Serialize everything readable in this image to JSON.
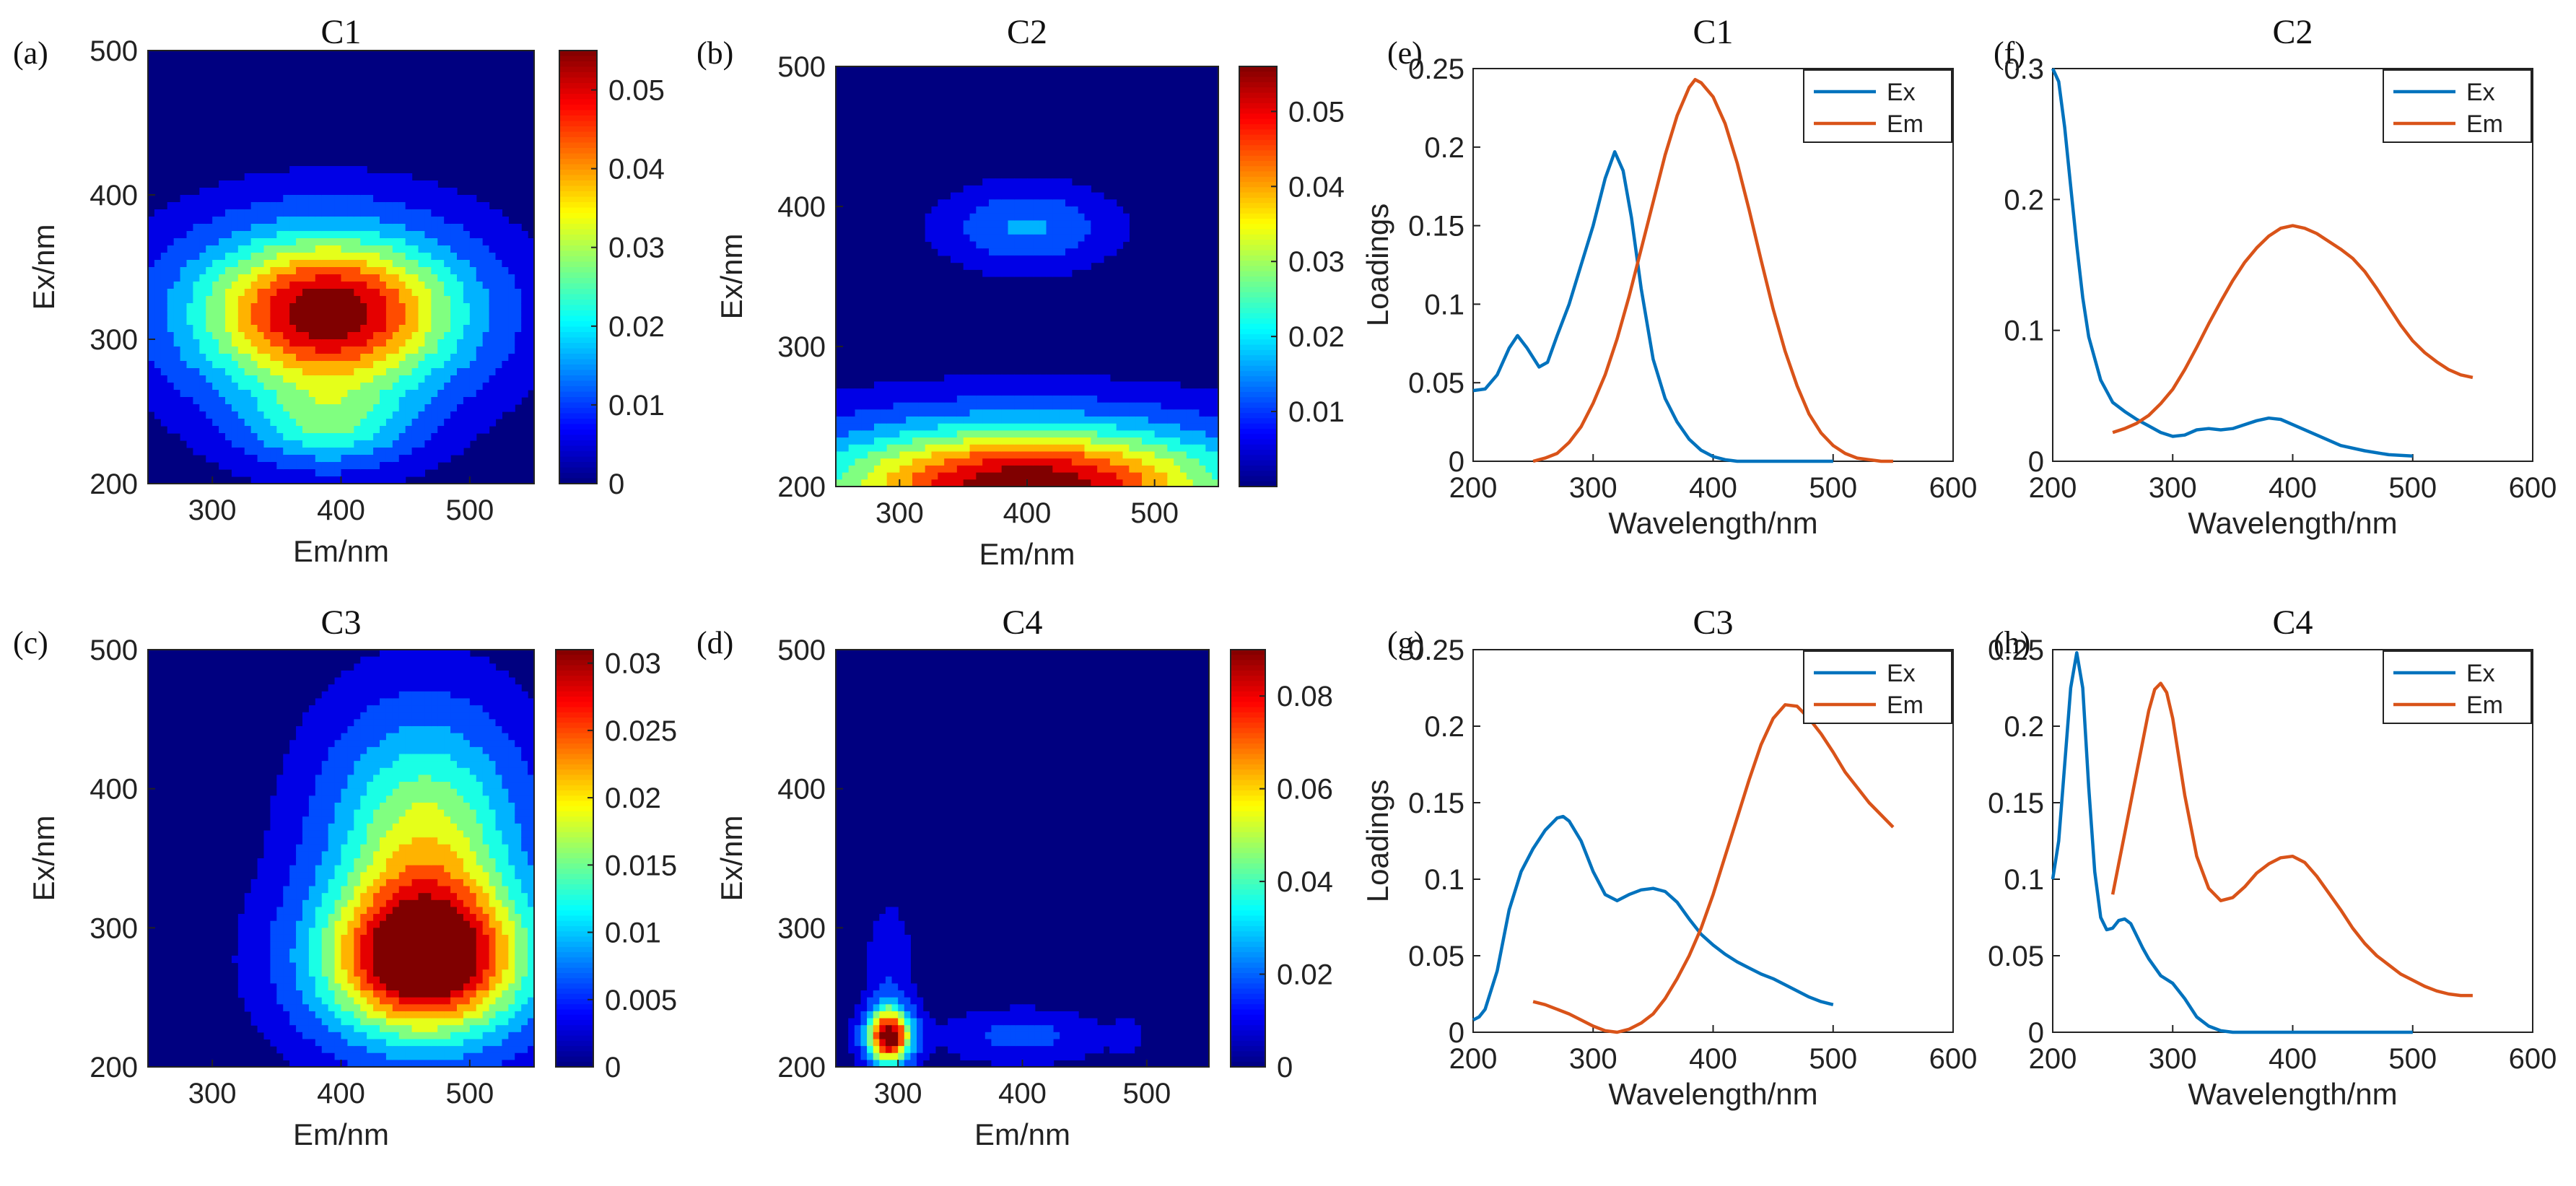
{
  "colors": {
    "ex": "#0072BD",
    "em": "#D95319",
    "jet_low": "#00008F",
    "jet_high": "#800000"
  },
  "chart_data": [
    {
      "id": "a",
      "panel": "(a)",
      "type": "heatmap",
      "title": "C1",
      "xlabel": "Em/nm",
      "ylabel": "Ex/nm",
      "xlim": [
        250,
        550
      ],
      "ylim": [
        200,
        500
      ],
      "xticks": [
        300,
        400,
        500
      ],
      "yticks": [
        200,
        300,
        400,
        500
      ],
      "colorbar": {
        "range": [
          0,
          0.055
        ],
        "ticks": [
          0,
          0.01,
          0.02,
          0.03,
          0.04,
          0.05
        ],
        "labels": [
          "0",
          "0.01",
          "0.02",
          "0.03",
          "0.04",
          "0.05"
        ]
      },
      "peaks": [
        {
          "em": 390,
          "ex": 318,
          "value": 0.055,
          "em_width": 70,
          "ex_width": 38
        },
        {
          "em": 390,
          "ex": 240,
          "value": 0.018,
          "em_width": 45,
          "ex_width": 20
        }
      ]
    },
    {
      "id": "b",
      "panel": "(b)",
      "type": "heatmap",
      "title": "C2",
      "xlabel": "Em/nm",
      "ylabel": "Ex/nm",
      "xlim": [
        250,
        550
      ],
      "ylim": [
        200,
        500
      ],
      "xticks": [
        300,
        400,
        500
      ],
      "yticks": [
        200,
        300,
        400,
        500
      ],
      "colorbar": {
        "range": [
          0,
          0.056
        ],
        "ticks": [
          0.01,
          0.02,
          0.03,
          0.04,
          0.05
        ],
        "labels": [
          "0.01",
          "0.02",
          "0.03",
          "0.04",
          "0.05"
        ]
      },
      "peaks": [
        {
          "em": 400,
          "ex": 200,
          "value": 0.056,
          "em_width": 110,
          "ex_width": 30
        },
        {
          "em": 400,
          "ex": 385,
          "value": 0.012,
          "em_width": 40,
          "ex_width": 18
        }
      ]
    },
    {
      "id": "c",
      "panel": "(c)",
      "type": "heatmap",
      "title": "C3",
      "xlabel": "Em/nm",
      "ylabel": "Ex/nm",
      "xlim": [
        250,
        550
      ],
      "ylim": [
        200,
        500
      ],
      "xticks": [
        300,
        400,
        500
      ],
      "yticks": [
        200,
        300,
        400,
        500
      ],
      "colorbar": {
        "range": [
          0,
          0.031
        ],
        "ticks": [
          0,
          0.005,
          0.01,
          0.015,
          0.02,
          0.025,
          0.03
        ],
        "labels": [
          "0",
          "0.005",
          "0.01",
          "0.015",
          "0.02",
          "0.025",
          "0.03"
        ]
      },
      "peaks": [
        {
          "em": 465,
          "ex": 275,
          "value": 0.031,
          "em_width": 55,
          "ex_width": 38
        },
        {
          "em": 465,
          "ex": 360,
          "value": 0.017,
          "em_width": 50,
          "ex_width": 60
        }
      ]
    },
    {
      "id": "d",
      "panel": "(d)",
      "type": "heatmap",
      "title": "C4",
      "xlabel": "Em/nm",
      "ylabel": "Ex/nm",
      "xlim": [
        250,
        550
      ],
      "ylim": [
        200,
        500
      ],
      "xticks": [
        300,
        400,
        500
      ],
      "yticks": [
        200,
        300,
        400,
        500
      ],
      "colorbar": {
        "range": [
          0,
          0.09
        ],
        "ticks": [
          0,
          0.02,
          0.04,
          0.06,
          0.08
        ],
        "labels": [
          "0",
          "0.02",
          "0.04",
          "0.06",
          "0.08"
        ]
      },
      "peaks": [
        {
          "em": 293,
          "ex": 222,
          "value": 0.09,
          "em_width": 12,
          "ex_width": 14
        },
        {
          "em": 293,
          "ex": 270,
          "value": 0.008,
          "em_width": 12,
          "ex_width": 30
        },
        {
          "em": 400,
          "ex": 222,
          "value": 0.012,
          "em_width": 40,
          "ex_width": 12
        },
        {
          "em": 485,
          "ex": 222,
          "value": 0.004,
          "em_width": 10,
          "ex_width": 10
        }
      ]
    },
    {
      "id": "e",
      "panel": "(e)",
      "type": "line",
      "title": "C1",
      "xlabel": "Wavelength/nm",
      "ylabel": "Loadings",
      "xlim": [
        200,
        600
      ],
      "ylim": [
        0,
        0.25
      ],
      "xticks": [
        200,
        300,
        400,
        500,
        600
      ],
      "yticks": [
        0,
        0.05,
        0.1,
        0.15,
        0.2,
        0.25
      ],
      "ytick_labels": [
        "0",
        "0.05",
        "0.1",
        "0.15",
        "0.2",
        "0.25"
      ],
      "series": [
        {
          "name": "Ex",
          "x": [
            200,
            210,
            220,
            230,
            237,
            245,
            255,
            262,
            270,
            280,
            290,
            300,
            310,
            318,
            325,
            332,
            340,
            350,
            360,
            370,
            380,
            390,
            400,
            410,
            420,
            440,
            460,
            480,
            500
          ],
          "y": [
            0.045,
            0.046,
            0.055,
            0.072,
            0.08,
            0.072,
            0.06,
            0.063,
            0.08,
            0.1,
            0.125,
            0.15,
            0.18,
            0.197,
            0.185,
            0.155,
            0.11,
            0.065,
            0.04,
            0.025,
            0.014,
            0.007,
            0.003,
            0.001,
            0.0,
            0.0,
            0.0,
            0.0,
            0.0
          ]
        },
        {
          "name": "Em",
          "x": [
            250,
            260,
            270,
            280,
            290,
            300,
            310,
            320,
            330,
            340,
            350,
            360,
            370,
            380,
            385,
            390,
            400,
            410,
            420,
            430,
            440,
            450,
            460,
            470,
            480,
            490,
            500,
            510,
            520,
            530,
            540,
            550
          ],
          "y": [
            0.0,
            0.002,
            0.005,
            0.012,
            0.022,
            0.037,
            0.055,
            0.078,
            0.105,
            0.135,
            0.165,
            0.195,
            0.22,
            0.238,
            0.243,
            0.241,
            0.232,
            0.215,
            0.19,
            0.16,
            0.128,
            0.097,
            0.07,
            0.048,
            0.03,
            0.018,
            0.01,
            0.005,
            0.002,
            0.001,
            0.0,
            0.0
          ]
        }
      ],
      "legend": "top-right"
    },
    {
      "id": "f",
      "panel": "(f)",
      "type": "line",
      "title": "C2",
      "xlabel": "Wavelength/nm",
      "ylabel": "",
      "xlim": [
        200,
        600
      ],
      "ylim": [
        0,
        0.3
      ],
      "xticks": [
        200,
        300,
        400,
        500,
        600
      ],
      "yticks": [
        0,
        0.1,
        0.2,
        0.3
      ],
      "ytick_labels": [
        "0",
        "0.1",
        "0.2",
        "0.3"
      ],
      "series": [
        {
          "name": "Ex",
          "x": [
            200,
            205,
            210,
            215,
            220,
            225,
            230,
            240,
            250,
            260,
            270,
            280,
            290,
            300,
            310,
            320,
            330,
            340,
            350,
            360,
            370,
            380,
            390,
            400,
            420,
            440,
            460,
            480,
            500
          ],
          "y": [
            0.305,
            0.29,
            0.255,
            0.21,
            0.165,
            0.125,
            0.095,
            0.062,
            0.045,
            0.038,
            0.032,
            0.027,
            0.022,
            0.019,
            0.02,
            0.024,
            0.025,
            0.024,
            0.025,
            0.028,
            0.031,
            0.033,
            0.032,
            0.028,
            0.02,
            0.012,
            0.008,
            0.005,
            0.004
          ]
        },
        {
          "name": "Em",
          "x": [
            250,
            260,
            270,
            280,
            290,
            300,
            310,
            320,
            330,
            340,
            350,
            360,
            370,
            380,
            390,
            400,
            410,
            420,
            430,
            440,
            450,
            460,
            470,
            480,
            490,
            500,
            510,
            520,
            530,
            540,
            550
          ],
          "y": [
            0.022,
            0.025,
            0.029,
            0.035,
            0.044,
            0.055,
            0.07,
            0.087,
            0.105,
            0.122,
            0.138,
            0.152,
            0.163,
            0.172,
            0.178,
            0.18,
            0.178,
            0.174,
            0.168,
            0.162,
            0.155,
            0.145,
            0.132,
            0.118,
            0.104,
            0.092,
            0.083,
            0.076,
            0.07,
            0.066,
            0.064
          ]
        }
      ],
      "legend": "top-right"
    },
    {
      "id": "g",
      "panel": "(g)",
      "type": "line",
      "title": "C3",
      "xlabel": "Wavelength/nm",
      "ylabel": "Loadings",
      "xlim": [
        200,
        600
      ],
      "ylim": [
        0,
        0.25
      ],
      "xticks": [
        200,
        300,
        400,
        500,
        600
      ],
      "yticks": [
        0,
        0.05,
        0.1,
        0.15,
        0.2,
        0.25
      ],
      "ytick_labels": [
        "0",
        "0.05",
        "0.1",
        "0.15",
        "0.2",
        "0.25"
      ],
      "series": [
        {
          "name": "Ex",
          "x": [
            200,
            205,
            210,
            220,
            230,
            240,
            250,
            260,
            270,
            275,
            280,
            290,
            300,
            310,
            320,
            330,
            340,
            350,
            360,
            370,
            380,
            390,
            400,
            410,
            420,
            430,
            440,
            450,
            460,
            470,
            480,
            490,
            500
          ],
          "y": [
            0.008,
            0.01,
            0.015,
            0.04,
            0.08,
            0.105,
            0.12,
            0.132,
            0.14,
            0.141,
            0.138,
            0.125,
            0.105,
            0.09,
            0.086,
            0.09,
            0.093,
            0.094,
            0.092,
            0.085,
            0.074,
            0.064,
            0.057,
            0.051,
            0.046,
            0.042,
            0.038,
            0.035,
            0.031,
            0.027,
            0.023,
            0.02,
            0.018
          ]
        },
        {
          "name": "Em",
          "x": [
            250,
            260,
            270,
            280,
            290,
            300,
            310,
            320,
            330,
            340,
            350,
            360,
            370,
            380,
            390,
            400,
            410,
            420,
            430,
            440,
            450,
            460,
            470,
            480,
            490,
            500,
            510,
            520,
            530,
            540,
            550
          ],
          "y": [
            0.02,
            0.018,
            0.015,
            0.012,
            0.008,
            0.004,
            0.001,
            0.0,
            0.002,
            0.006,
            0.012,
            0.022,
            0.035,
            0.05,
            0.068,
            0.09,
            0.115,
            0.14,
            0.165,
            0.188,
            0.205,
            0.214,
            0.213,
            0.205,
            0.195,
            0.183,
            0.17,
            0.16,
            0.15,
            0.142,
            0.134
          ]
        }
      ],
      "legend": "top-right"
    },
    {
      "id": "h",
      "panel": "(h)",
      "type": "line",
      "title": "C4",
      "xlabel": "Wavelength/nm",
      "ylabel": "",
      "xlim": [
        200,
        600
      ],
      "ylim": [
        0,
        0.25
      ],
      "xticks": [
        200,
        300,
        400,
        500,
        600
      ],
      "yticks": [
        0,
        0.05,
        0.1,
        0.15,
        0.2,
        0.25
      ],
      "ytick_labels": [
        "0",
        "0.05",
        "0.1",
        "0.15",
        "0.2",
        "0.25"
      ],
      "series": [
        {
          "name": "Ex",
          "x": [
            200,
            205,
            210,
            215,
            220,
            225,
            230,
            235,
            240,
            245,
            250,
            255,
            260,
            265,
            270,
            275,
            280,
            290,
            300,
            310,
            320,
            330,
            340,
            350,
            370,
            400,
            450,
            500
          ],
          "y": [
            0.1,
            0.125,
            0.175,
            0.225,
            0.248,
            0.225,
            0.16,
            0.105,
            0.075,
            0.067,
            0.068,
            0.073,
            0.074,
            0.071,
            0.063,
            0.055,
            0.048,
            0.037,
            0.032,
            0.022,
            0.01,
            0.004,
            0.001,
            0.0,
            0.0,
            0.0,
            0.0,
            0.0
          ]
        },
        {
          "name": "Em",
          "x": [
            250,
            255,
            260,
            265,
            270,
            275,
            280,
            285,
            290,
            295,
            300,
            305,
            310,
            320,
            330,
            340,
            350,
            360,
            370,
            380,
            390,
            400,
            410,
            420,
            430,
            440,
            450,
            460,
            470,
            480,
            490,
            500,
            510,
            520,
            530,
            540,
            550
          ],
          "y": [
            0.09,
            0.11,
            0.13,
            0.15,
            0.17,
            0.19,
            0.21,
            0.224,
            0.228,
            0.222,
            0.205,
            0.18,
            0.155,
            0.115,
            0.094,
            0.086,
            0.088,
            0.095,
            0.104,
            0.11,
            0.114,
            0.115,
            0.111,
            0.102,
            0.091,
            0.08,
            0.068,
            0.058,
            0.05,
            0.044,
            0.038,
            0.034,
            0.03,
            0.027,
            0.025,
            0.024,
            0.024
          ]
        }
      ],
      "legend": "top-right"
    }
  ]
}
